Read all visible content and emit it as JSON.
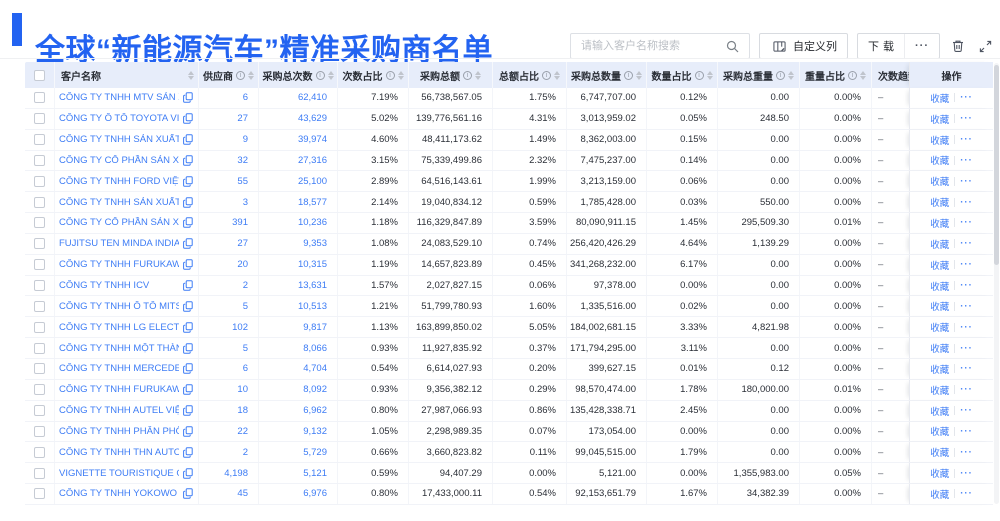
{
  "page": {
    "title": "全球“新能源汽车”精准采购商名单"
  },
  "toolbar": {
    "search_placeholder": "请输入客户名称搜索",
    "customize_button": "自定义列",
    "download_button": "下载",
    "more_button": "···"
  },
  "colors": {
    "accent": "#2363F1",
    "link": "#3D7CF5",
    "header_bg": "#E7EDFA"
  },
  "table": {
    "columns": [
      {
        "key": "name",
        "label": "客户名称",
        "info": false,
        "sort": true
      },
      {
        "key": "supplier",
        "label": "供应商",
        "info": true,
        "sort": true
      },
      {
        "key": "times",
        "label": "采购总次数",
        "info": true,
        "sort": true
      },
      {
        "key": "times_pct",
        "label": "次数占比",
        "info": true,
        "sort": true
      },
      {
        "key": "amount",
        "label": "采购总额",
        "info": true,
        "sort": true
      },
      {
        "key": "amount_pct",
        "label": "总额占比",
        "info": true,
        "sort": true
      },
      {
        "key": "qty",
        "label": "采购总数量",
        "info": true,
        "sort": true
      },
      {
        "key": "qty_pct",
        "label": "数量占比",
        "info": true,
        "sort": true
      },
      {
        "key": "weight",
        "label": "采购总重量",
        "info": true,
        "sort": true
      },
      {
        "key": "weight_pct",
        "label": "重量占比",
        "info": true,
        "sort": true
      },
      {
        "key": "trend",
        "label": "次数趋势",
        "info": false,
        "sort": false
      },
      {
        "key": "action",
        "label": "操作",
        "info": false,
        "sort": false
      }
    ],
    "row_actions": {
      "favorite": "收藏",
      "more": "···"
    },
    "rows": [
      {
        "name": "CÔNG TY TNHH MTV SẢN XUẤ...",
        "supplier": "6",
        "times": "62,410",
        "times_pct": "7.19%",
        "amount": "56,738,567.05",
        "amount_pct": "1.75%",
        "qty": "6,747,707.00",
        "qty_pct": "0.12%",
        "weight": "0.00",
        "weight_pct": "0.00%",
        "trend": "–"
      },
      {
        "name": "CÔNG TY Ô TÔ TOYOTA VIỆT ...",
        "supplier": "27",
        "times": "43,629",
        "times_pct": "5.02%",
        "amount": "139,776,561.16",
        "amount_pct": "4.31%",
        "qty": "3,013,959.02",
        "qty_pct": "0.05%",
        "weight": "248.50",
        "weight_pct": "0.00%",
        "trend": "–"
      },
      {
        "name": "CÔNG TY TNHH SẢN XUẤT VÀ ...",
        "supplier": "9",
        "times": "39,974",
        "times_pct": "4.60%",
        "amount": "48,411,173.62",
        "amount_pct": "1.49%",
        "qty": "8,362,003.00",
        "qty_pct": "0.15%",
        "weight": "0.00",
        "weight_pct": "0.00%",
        "trend": "–"
      },
      {
        "name": "CÔNG TY CỔ PHẦN SẢN XUẤT...",
        "supplier": "32",
        "times": "27,316",
        "times_pct": "3.15%",
        "amount": "75,339,499.86",
        "amount_pct": "2.32%",
        "qty": "7,475,237.00",
        "qty_pct": "0.14%",
        "weight": "0.00",
        "weight_pct": "0.00%",
        "trend": "–"
      },
      {
        "name": "CÔNG TY TNHH FORD VIỆT NAM",
        "supplier": "55",
        "times": "25,100",
        "times_pct": "2.89%",
        "amount": "64,516,143.61",
        "amount_pct": "1.99%",
        "qty": "3,213,159.00",
        "qty_pct": "0.06%",
        "weight": "0.00",
        "weight_pct": "0.00%",
        "trend": "–"
      },
      {
        "name": "CÔNG TY TNHH SẢN XUẤT VÀ ...",
        "supplier": "3",
        "times": "18,577",
        "times_pct": "2.14%",
        "amount": "19,040,834.12",
        "amount_pct": "0.59%",
        "qty": "1,785,428.00",
        "qty_pct": "0.03%",
        "weight": "550.00",
        "weight_pct": "0.00%",
        "trend": "–"
      },
      {
        "name": "CÔNG TY CỔ PHẦN SẢN XUẤT...",
        "supplier": "391",
        "times": "10,236",
        "times_pct": "1.18%",
        "amount": "116,329,847.89",
        "amount_pct": "3.59%",
        "qty": "80,090,911.15",
        "qty_pct": "1.45%",
        "weight": "295,509.30",
        "weight_pct": "0.01%",
        "trend": "–"
      },
      {
        "name": "FUJITSU TEN MINDA INDIA PVT...",
        "supplier": "27",
        "times": "9,353",
        "times_pct": "1.08%",
        "amount": "24,083,529.10",
        "amount_pct": "0.74%",
        "qty": "256,420,426.29",
        "qty_pct": "4.64%",
        "weight": "1,139.29",
        "weight_pct": "0.00%",
        "trend": "–"
      },
      {
        "name": "CÔNG TY TNHH FURUKAWA A...",
        "supplier": "20",
        "times": "10,315",
        "times_pct": "1.19%",
        "amount": "14,657,823.89",
        "amount_pct": "0.45%",
        "qty": "341,268,232.00",
        "qty_pct": "6.17%",
        "weight": "0.00",
        "weight_pct": "0.00%",
        "trend": "–"
      },
      {
        "name": "CÔNG TY TNHH ICV",
        "supplier": "2",
        "times": "13,631",
        "times_pct": "1.57%",
        "amount": "2,027,827.15",
        "amount_pct": "0.06%",
        "qty": "97,378.00",
        "qty_pct": "0.00%",
        "weight": "0.00",
        "weight_pct": "0.00%",
        "trend": "–"
      },
      {
        "name": "CÔNG TY TNHH Ô TÔ MITSUBI...",
        "supplier": "5",
        "times": "10,513",
        "times_pct": "1.21%",
        "amount": "51,799,780.93",
        "amount_pct": "1.60%",
        "qty": "1,335,516.00",
        "qty_pct": "0.02%",
        "weight": "0.00",
        "weight_pct": "0.00%",
        "trend": "–"
      },
      {
        "name": "CÔNG TY TNHH LG ELECTRON...",
        "supplier": "102",
        "times": "9,817",
        "times_pct": "1.13%",
        "amount": "163,899,850.02",
        "amount_pct": "5.05%",
        "qty": "184,002,681.15",
        "qty_pct": "3.33%",
        "weight": "4,821.98",
        "weight_pct": "0.00%",
        "trend": "–"
      },
      {
        "name": "CÔNG TY TNHH MỘT THÀNH V...",
        "supplier": "5",
        "times": "8,066",
        "times_pct": "0.93%",
        "amount": "11,927,835.92",
        "amount_pct": "0.37%",
        "qty": "171,794,295.00",
        "qty_pct": "3.11%",
        "weight": "0.00",
        "weight_pct": "0.00%",
        "trend": "–"
      },
      {
        "name": "CÔNG TY TNHH MERCEDES-B...",
        "supplier": "6",
        "times": "4,704",
        "times_pct": "0.54%",
        "amount": "6,614,027.93",
        "amount_pct": "0.20%",
        "qty": "399,627.15",
        "qty_pct": "0.01%",
        "weight": "0.12",
        "weight_pct": "0.00%",
        "trend": "–"
      },
      {
        "name": "CÔNG TY TNHH FURUKAWA A...",
        "supplier": "10",
        "times": "8,092",
        "times_pct": "0.93%",
        "amount": "9,356,382.12",
        "amount_pct": "0.29%",
        "qty": "98,570,474.00",
        "qty_pct": "1.78%",
        "weight": "180,000.00",
        "weight_pct": "0.01%",
        "trend": "–"
      },
      {
        "name": "CÔNG TY TNHH AUTEL VIỆT N...",
        "supplier": "18",
        "times": "6,962",
        "times_pct": "0.80%",
        "amount": "27,987,066.93",
        "amount_pct": "0.86%",
        "qty": "135,428,338.71",
        "qty_pct": "2.45%",
        "weight": "0.00",
        "weight_pct": "0.00%",
        "trend": "–"
      },
      {
        "name": "CÔNG TY TNHH PHÂN PHỐI T...",
        "supplier": "22",
        "times": "9,132",
        "times_pct": "1.05%",
        "amount": "2,298,989.35",
        "amount_pct": "0.07%",
        "qty": "173,054.00",
        "qty_pct": "0.00%",
        "weight": "0.00",
        "weight_pct": "0.00%",
        "trend": "–"
      },
      {
        "name": "CÔNG TY TNHH THN AUTOPAR...",
        "supplier": "2",
        "times": "5,729",
        "times_pct": "0.66%",
        "amount": "3,660,823.82",
        "amount_pct": "0.11%",
        "qty": "99,045,515.00",
        "qty_pct": "1.79%",
        "weight": "0.00",
        "weight_pct": "0.00%",
        "trend": "–"
      },
      {
        "name": "VIGNETTE TOURISTIQUE G UNI...",
        "supplier": "4,198",
        "times": "5,121",
        "times_pct": "0.59%",
        "amount": "94,407.29",
        "amount_pct": "0.00%",
        "qty": "5,121.00",
        "qty_pct": "0.00%",
        "weight": "1,355,983.00",
        "weight_pct": "0.05%",
        "trend": "–"
      },
      {
        "name": "CÔNG TY TNHH YOKOWO VIỆT...",
        "supplier": "45",
        "times": "6,976",
        "times_pct": "0.80%",
        "amount": "17,433,000.11",
        "amount_pct": "0.54%",
        "qty": "92,153,651.79",
        "qty_pct": "1.67%",
        "weight": "34,382.39",
        "weight_pct": "0.00%",
        "trend": "–"
      }
    ]
  }
}
